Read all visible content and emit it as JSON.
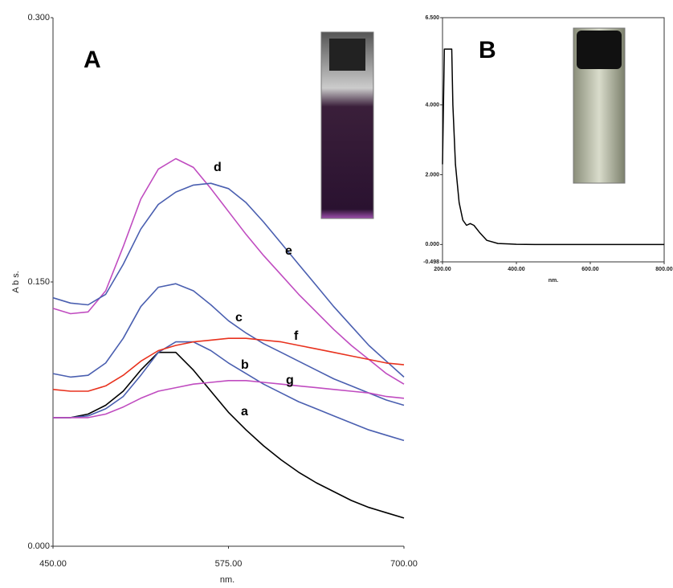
{
  "chart_data": [
    {
      "type": "line",
      "panel_label": "A",
      "x_label": "nm.",
      "y_label": "A b s.",
      "x": [
        450,
        462.5,
        475,
        487.5,
        500,
        512.5,
        525,
        537.5,
        550,
        562.5,
        575,
        587.5,
        600,
        612.5,
        625,
        637.5,
        650,
        662.5,
        675,
        687.5,
        700
      ],
      "series": [
        {
          "name": "a",
          "color": "#000000",
          "values": [
            0.073,
            0.073,
            0.075,
            0.08,
            0.088,
            0.1,
            0.11,
            0.11,
            0.1,
            0.088,
            0.076,
            0.066,
            0.057,
            0.049,
            0.042,
            0.036,
            0.031,
            0.026,
            0.022,
            0.019,
            0.016
          ]
        },
        {
          "name": "b",
          "color": "#4a5fb0",
          "values": [
            0.073,
            0.073,
            0.074,
            0.078,
            0.085,
            0.097,
            0.11,
            0.116,
            0.116,
            0.111,
            0.104,
            0.098,
            0.092,
            0.087,
            0.082,
            0.078,
            0.074,
            0.07,
            0.066,
            0.063,
            0.06
          ]
        },
        {
          "name": "c",
          "color": "#4a5fb0",
          "values": [
            0.098,
            0.096,
            0.097,
            0.104,
            0.118,
            0.136,
            0.147,
            0.149,
            0.145,
            0.137,
            0.128,
            0.121,
            0.115,
            0.11,
            0.105,
            0.1,
            0.095,
            0.091,
            0.087,
            0.083,
            0.08
          ]
        },
        {
          "name": "d",
          "color": "#c04cc0",
          "values": [
            0.135,
            0.132,
            0.133,
            0.145,
            0.17,
            0.197,
            0.214,
            0.22,
            0.215,
            0.203,
            0.19,
            0.177,
            0.165,
            0.154,
            0.143,
            0.133,
            0.123,
            0.114,
            0.106,
            0.098,
            0.092
          ]
        },
        {
          "name": "e",
          "color": "#4a5fb0",
          "values": [
            0.141,
            0.138,
            0.137,
            0.143,
            0.16,
            0.18,
            0.194,
            0.201,
            0.205,
            0.206,
            0.203,
            0.195,
            0.184,
            0.172,
            0.16,
            0.148,
            0.136,
            0.125,
            0.114,
            0.105,
            0.096
          ]
        },
        {
          "name": "f",
          "color": "#e8321e",
          "values": [
            0.089,
            0.088,
            0.088,
            0.091,
            0.097,
            0.105,
            0.111,
            0.114,
            0.116,
            0.117,
            0.118,
            0.118,
            0.117,
            0.116,
            0.114,
            0.112,
            0.11,
            0.108,
            0.106,
            0.104,
            0.103
          ]
        },
        {
          "name": "g",
          "color": "#c04cc0",
          "values": [
            0.073,
            0.073,
            0.073,
            0.075,
            0.079,
            0.084,
            0.088,
            0.09,
            0.092,
            0.093,
            0.094,
            0.094,
            0.093,
            0.092,
            0.091,
            0.09,
            0.089,
            0.088,
            0.087,
            0.085,
            0.084
          ]
        }
      ],
      "xlim": [
        450,
        700
      ],
      "xticks": [
        {
          "value": 450,
          "label": "450.00"
        },
        {
          "value": 575,
          "label": "575.00"
        },
        {
          "value": 700,
          "label": "700.00"
        }
      ],
      "ylim": [
        0,
        0.3
      ],
      "yticks": [
        {
          "value": 0,
          "label": "0.000"
        },
        {
          "value": 0.15,
          "label": "0.150"
        },
        {
          "value": 0.3,
          "label": "0.300"
        }
      ]
    },
    {
      "type": "line",
      "panel_label": "B",
      "x_label": "nm.",
      "x": [
        200,
        205,
        210,
        220,
        225,
        228,
        235,
        245,
        255,
        265,
        275,
        285,
        300,
        320,
        350,
        400,
        450,
        500,
        600,
        700,
        800
      ],
      "series": [
        {
          "color": "#000000",
          "values": [
            2.3,
            5.6,
            5.6,
            5.6,
            5.6,
            4.0,
            2.3,
            1.2,
            0.7,
            0.55,
            0.6,
            0.55,
            0.35,
            0.12,
            0.03,
            0.005,
            0,
            0,
            0,
            0,
            0
          ]
        }
      ],
      "xlim": [
        200,
        800
      ],
      "xticks": [
        {
          "value": 200,
          "label": "200.00"
        },
        {
          "value": 400,
          "label": "400.00"
        },
        {
          "value": 600,
          "label": "600.00"
        },
        {
          "value": 800,
          "label": "800.00"
        }
      ],
      "ylim": [
        -0.498,
        6.5
      ],
      "yticks": [
        {
          "value": -0.498,
          "label": "-0.498"
        },
        {
          "value": 0,
          "label": "0.000"
        },
        {
          "value": 2,
          "label": "2.000"
        },
        {
          "value": 4,
          "label": "4.000"
        },
        {
          "value": 6.5,
          "label": "6.500"
        }
      ]
    }
  ]
}
